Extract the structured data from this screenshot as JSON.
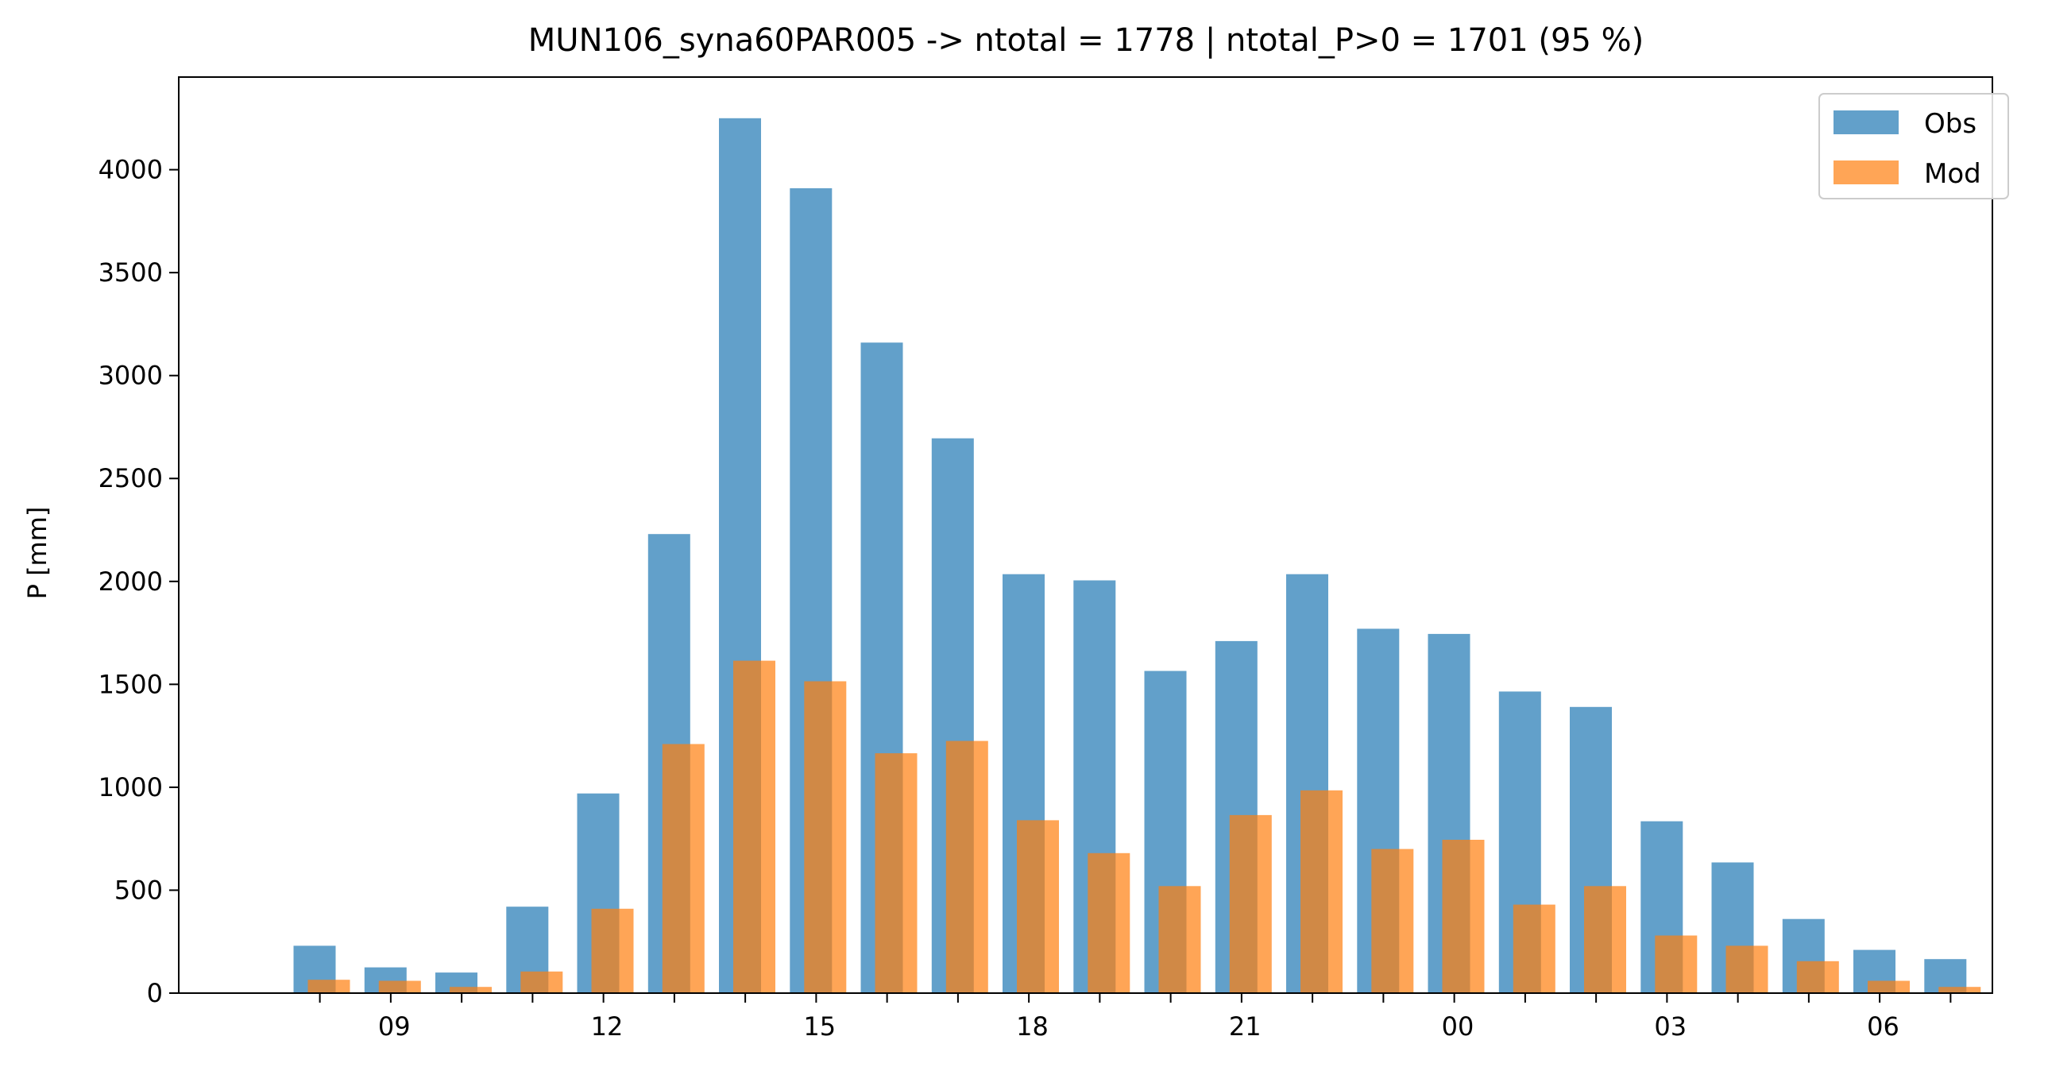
{
  "chart_data": {
    "type": "bar",
    "title": "MUN106_syna60PAR005 -> ntotal = 1778 | ntotal_P>0 = 1701 (95 %)",
    "xlabel": "",
    "ylabel": "P [mm]",
    "ylim": [
      0,
      4450
    ],
    "y_ticks": [
      0,
      500,
      1000,
      1500,
      2000,
      2500,
      3000,
      3500,
      4000
    ],
    "hours": [
      "08",
      "09",
      "10",
      "11",
      "12",
      "13",
      "14",
      "15",
      "16",
      "17",
      "18",
      "19",
      "20",
      "21",
      "22",
      "23",
      "00",
      "01",
      "02",
      "03",
      "04",
      "05",
      "06",
      "07"
    ],
    "x_tick_labels": [
      "09",
      "12",
      "15",
      "18",
      "21",
      "00",
      "03",
      "06"
    ],
    "x_tick_label_hours": [
      1,
      4,
      7,
      10,
      13,
      16,
      19,
      22
    ],
    "grid": false,
    "legend_position": "top-right",
    "series": [
      {
        "name": "Obs",
        "color": "#1f77b4",
        "opacity": 0.7,
        "values": [
          230,
          125,
          100,
          420,
          970,
          2230,
          4250,
          3910,
          3160,
          2695,
          2035,
          2005,
          1565,
          1710,
          2035,
          1770,
          1745,
          1465,
          1390,
          835,
          635,
          360,
          210,
          165
        ]
      },
      {
        "name": "Mod",
        "color": "#ff7f0e",
        "opacity": 0.7,
        "values": [
          65,
          60,
          30,
          105,
          410,
          1210,
          1615,
          1515,
          1165,
          1225,
          840,
          680,
          520,
          865,
          985,
          700,
          745,
          430,
          520,
          280,
          230,
          155,
          60,
          30
        ]
      }
    ]
  }
}
